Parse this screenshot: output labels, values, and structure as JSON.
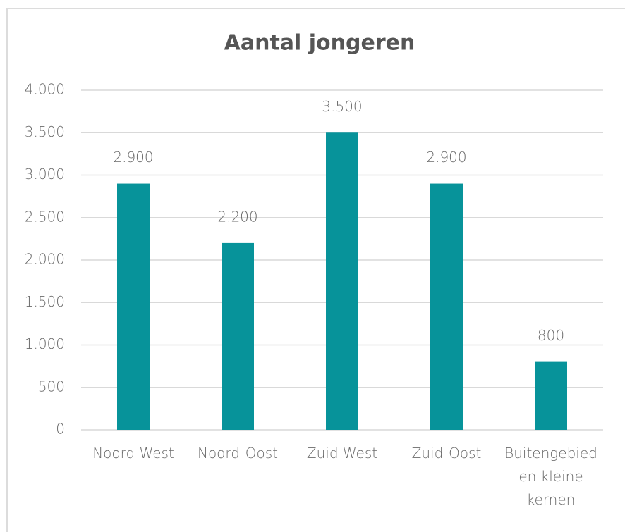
{
  "chart_data": {
    "type": "bar",
    "title": "Aantal jongeren",
    "categories": [
      "Noord-West",
      "Noord-Oost",
      "Zuid-West",
      "Zuid-Oost",
      "Buitengebied en kleine kernen"
    ],
    "values": [
      2900,
      2200,
      3500,
      2900,
      800
    ],
    "value_labels": [
      "2.900",
      "2.200",
      "3.500",
      "2.900",
      "800"
    ],
    "color": "#07939a",
    "ylim": [
      0,
      4000
    ],
    "yticks": [
      0,
      500,
      {
        "value": 1000,
        "label": "1.000"
      },
      {
        "value": 1500,
        "label": "1.500"
      },
      {
        "value": 2000,
        "label": "2.000"
      },
      {
        "value": 2500,
        "label": "2.500"
      },
      {
        "value": 3000,
        "label": "3.000"
      },
      {
        "value": 3500,
        "label": "3.500"
      },
      {
        "value": 4000,
        "label": "4.000"
      }
    ],
    "grid": true
  }
}
